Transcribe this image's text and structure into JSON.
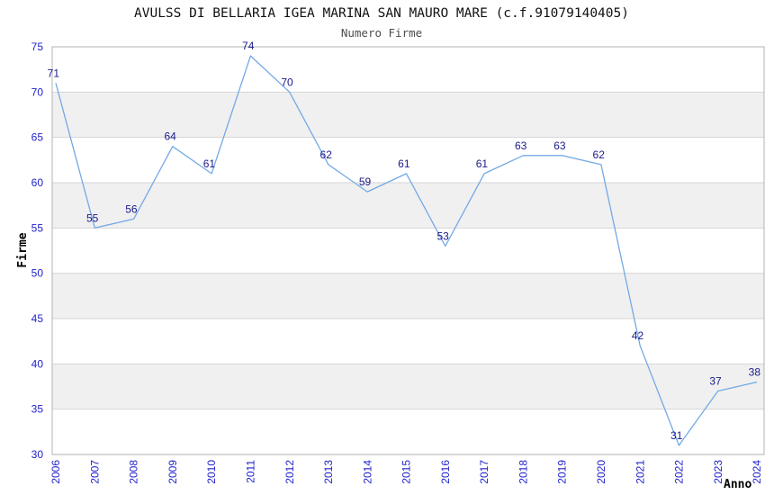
{
  "title": "AVULSS DI BELLARIA IGEA MARINA SAN MAURO MARE (c.f.91079140405)",
  "subtitle": "Numero Firme",
  "chart_data": {
    "type": "line",
    "title": "AVULSS DI BELLARIA IGEA MARINA SAN MAURO MARE (c.f.91079140405)",
    "subtitle": "Numero Firme",
    "xlabel": "Anno",
    "ylabel": "Firme",
    "categories": [
      "2006",
      "2007",
      "2008",
      "2009",
      "2010",
      "2011",
      "2012",
      "2013",
      "2014",
      "2015",
      "2016",
      "2017",
      "2018",
      "2019",
      "2020",
      "2021",
      "2022",
      "2023",
      "2024"
    ],
    "values": [
      71,
      55,
      56,
      64,
      61,
      74,
      70,
      62,
      59,
      61,
      53,
      61,
      63,
      63,
      62,
      42,
      31,
      37,
      38
    ],
    "ylim": [
      30,
      75
    ],
    "ytick_step": 5,
    "yticks": [
      30,
      35,
      40,
      45,
      50,
      55,
      60,
      65,
      70,
      75
    ],
    "grid": true,
    "legend": "none",
    "point_labels_visible": true,
    "band_fill_ranges": [
      [
        35,
        40
      ],
      [
        45,
        50
      ],
      [
        55,
        60
      ],
      [
        65,
        70
      ]
    ],
    "colors": {
      "line": "#73a9e5",
      "tick_label": "#2222cc",
      "data_label": "#1a1a8a",
      "band": "#f0f0f0",
      "gridline": "#d6d6d6",
      "border": "#b3b3b3",
      "title": "#111111",
      "subtitle": "#4d4d4d",
      "background": "#ffffff"
    }
  }
}
